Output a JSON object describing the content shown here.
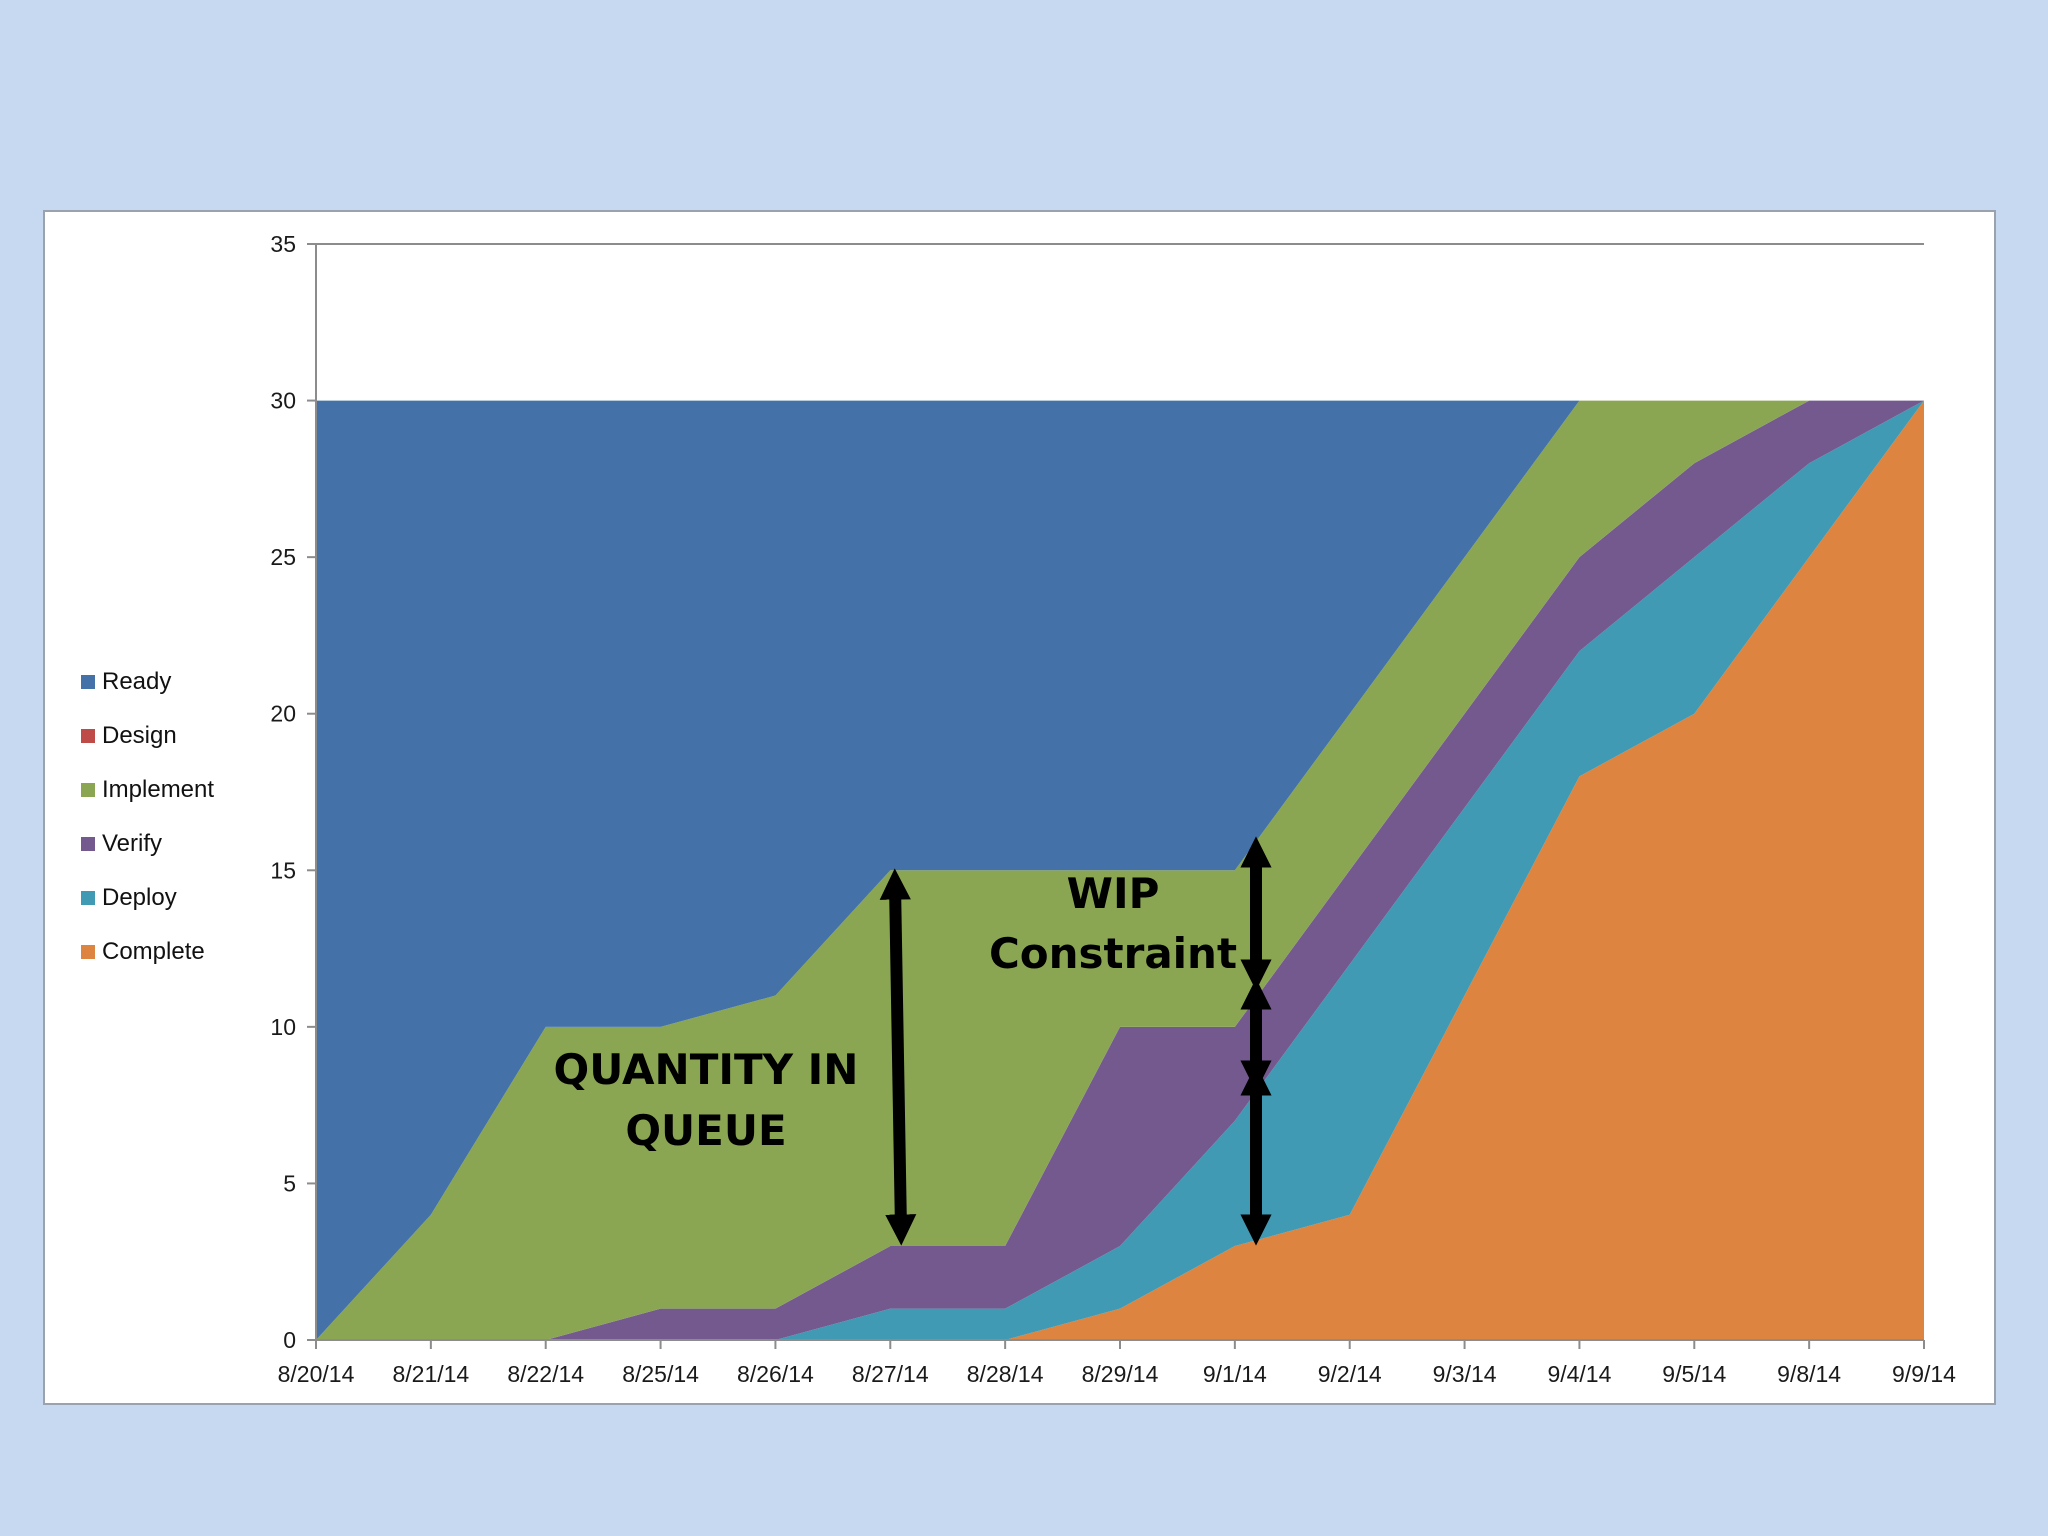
{
  "chart_data": {
    "type": "area",
    "stacked": true,
    "categories": [
      "8/20/14",
      "8/21/14",
      "8/22/14",
      "8/25/14",
      "8/26/14",
      "8/27/14",
      "8/28/14",
      "8/29/14",
      "9/1/14",
      "9/2/14",
      "9/3/14",
      "9/4/14",
      "9/5/14",
      "9/8/14",
      "9/9/14"
    ],
    "series": [
      {
        "name": "Complete",
        "color": "#dd8440",
        "values": [
          0,
          0,
          0,
          0,
          0,
          0,
          0,
          1,
          3,
          4,
          11,
          18,
          20,
          25,
          30
        ]
      },
      {
        "name": "Deploy",
        "color": "#419ab4",
        "values": [
          0,
          0,
          0,
          0,
          0,
          1,
          1,
          2,
          4,
          8,
          6,
          4,
          5,
          3,
          0
        ]
      },
      {
        "name": "Verify",
        "color": "#74598f",
        "values": [
          0,
          0,
          0,
          1,
          1,
          2,
          2,
          7,
          3,
          3,
          3,
          3,
          3,
          2,
          0
        ]
      },
      {
        "name": "Implement",
        "color": "#8ba653",
        "values": [
          0,
          4,
          10,
          9,
          10,
          12,
          12,
          5,
          5,
          5,
          5,
          5,
          2,
          0,
          0
        ]
      },
      {
        "name": "Design",
        "color": "#be4b48",
        "values": [
          0,
          0,
          0,
          0,
          0,
          0,
          0,
          0,
          0,
          0,
          0,
          0,
          0,
          0,
          0
        ]
      },
      {
        "name": "Ready",
        "color": "#4472a8",
        "values": [
          30,
          26,
          20,
          20,
          19,
          15,
          15,
          15,
          15,
          10,
          5,
          0,
          0,
          0,
          0
        ]
      }
    ],
    "legend_order": [
      "Ready",
      "Design",
      "Implement",
      "Verify",
      "Deploy",
      "Complete"
    ],
    "legend_position": "left",
    "ylim": [
      0,
      35
    ],
    "yticks": [
      0,
      5,
      10,
      15,
      20,
      25,
      30,
      35
    ],
    "grid": false,
    "annotations": [
      {
        "id": "quantity",
        "lines": [
          "QUANTITY IN",
          "QUEUE"
        ]
      },
      {
        "id": "wip",
        "lines": [
          "WIP",
          "Constraint"
        ]
      }
    ]
  }
}
